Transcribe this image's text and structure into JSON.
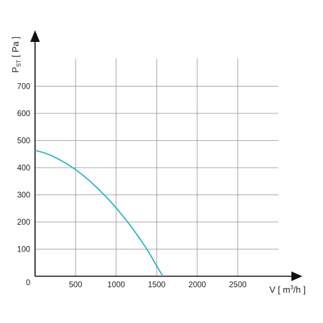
{
  "chart_data": {
    "type": "line",
    "title": "",
    "xlabel": {
      "main": "V [ m",
      "sup": "3",
      "tail": "/h ]"
    },
    "ylabel": {
      "main": "P",
      "sub": "ST",
      "tail": " [ Pa ]"
    },
    "xlim": [
      0,
      3000
    ],
    "ylim": [
      0,
      800
    ],
    "xticks": [
      500,
      1000,
      1500,
      2000,
      2500
    ],
    "yticks": [
      100,
      200,
      300,
      400,
      500,
      600,
      700
    ],
    "origin_label": "0",
    "grid": true,
    "line_color": "#2ab3c9",
    "series": [
      {
        "x": [
          0,
          100,
          200,
          300,
          400,
          500,
          600,
          700,
          800,
          900,
          1000,
          1100,
          1200,
          1300,
          1400,
          1500,
          1560,
          1580
        ],
        "y": [
          464,
          456,
          445,
          430,
          413,
          393,
          370,
          344,
          316,
          285,
          252,
          216,
          177,
          135,
          90,
          38,
          8,
          0
        ]
      }
    ]
  }
}
